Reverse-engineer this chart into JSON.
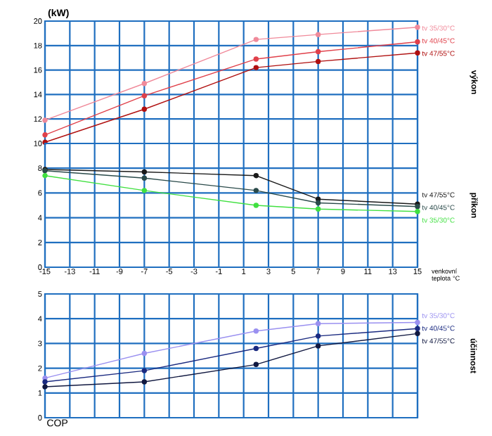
{
  "chart_data": [
    {
      "type": "line",
      "y2label": "výkon",
      "ylabel": "(kW)",
      "x": [
        -15,
        -7,
        2,
        7,
        15
      ],
      "xlim": [
        -15,
        15
      ],
      "xticks": [
        -15,
        -13,
        -11,
        -9,
        -7,
        -5,
        -3,
        -1,
        1,
        3,
        5,
        7,
        9,
        11,
        13,
        15
      ],
      "ylim": [
        10,
        20
      ],
      "yticks": [
        10,
        12,
        14,
        16,
        18,
        20
      ],
      "grid": true,
      "marker": "circle",
      "tick_labels": "y",
      "series": [
        {
          "name": "tv 35/30°C",
          "color": "#f08a9a",
          "values": [
            11.9,
            14.9,
            18.5,
            18.9,
            19.5
          ]
        },
        {
          "name": "tv 40/45°C",
          "color": "#e0404a",
          "values": [
            10.7,
            13.9,
            16.9,
            17.5,
            18.3
          ]
        },
        {
          "name": "tv 47/55°C",
          "color": "#b01010",
          "values": [
            10.1,
            12.8,
            16.2,
            16.7,
            17.4
          ]
        }
      ]
    },
    {
      "type": "line",
      "y2label": "příkon",
      "xlabel": "venkovní teplota °C",
      "x": [
        -15,
        -7,
        2,
        7,
        15
      ],
      "xlim": [
        -15,
        15
      ],
      "xticks": [
        -15,
        -13,
        -11,
        -9,
        -7,
        -5,
        -3,
        -1,
        1,
        3,
        5,
        7,
        9,
        11,
        13,
        15
      ],
      "ylim": [
        0,
        10
      ],
      "yticks": [
        0,
        2,
        4,
        6,
        8
      ],
      "grid": true,
      "marker": "circle",
      "series": [
        {
          "name": "tv 47/55°C",
          "color": "#1a1a1a",
          "values": [
            7.9,
            7.7,
            7.4,
            5.5,
            5.1
          ]
        },
        {
          "name": "tv 40/45°C",
          "color": "#2a4a4a",
          "values": [
            7.8,
            7.2,
            6.2,
            5.2,
            4.9
          ]
        },
        {
          "name": "tv 35/30°C",
          "color": "#40e040",
          "values": [
            7.4,
            6.2,
            5.0,
            4.7,
            4.5
          ]
        }
      ]
    },
    {
      "type": "line",
      "y2label": "účinnost",
      "annotations": [
        "COP"
      ],
      "x": [
        -15,
        -7,
        2,
        7,
        15
      ],
      "xlim": [
        -15,
        15
      ],
      "xticks": [
        -15,
        -13,
        -11,
        -9,
        -7,
        -5,
        -3,
        -1,
        1,
        3,
        5,
        7,
        9,
        11,
        13,
        15
      ],
      "ylim": [
        0,
        5
      ],
      "yticks": [
        0,
        1,
        2,
        3,
        4,
        5
      ],
      "grid": true,
      "marker": "circle",
      "tick_labels": "y",
      "series": [
        {
          "name": "tv 35/30°C",
          "color": "#9a90f0",
          "values": [
            1.6,
            2.6,
            3.5,
            3.8,
            3.85
          ]
        },
        {
          "name": "tv 40/45°C",
          "color": "#1a2a80",
          "values": [
            1.45,
            1.9,
            2.8,
            3.3,
            3.6
          ]
        },
        {
          "name": "tv 47/55°C",
          "color": "#101840",
          "values": [
            1.25,
            1.45,
            2.15,
            2.9,
            3.4
          ]
        }
      ]
    }
  ]
}
